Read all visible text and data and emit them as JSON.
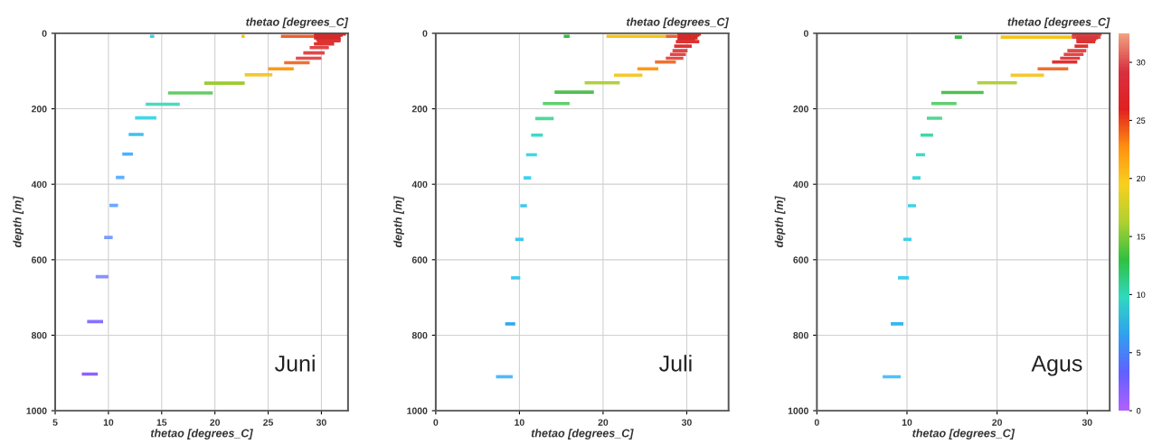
{
  "chart_data": [
    {
      "type": "line",
      "title": "thetao [degrees_C]",
      "xlabel": "thetao [degrees_C]",
      "ylabel": "depth [m]",
      "annotations": [
        "Juni"
      ],
      "xlim": [
        5,
        32.5
      ],
      "xticks": [
        5,
        10,
        15,
        20,
        25,
        30
      ],
      "ylim": [
        1000,
        0
      ],
      "yticks": [
        0,
        200,
        400,
        600,
        800,
        1000
      ],
      "grid": true,
      "series": [
        {
          "x": [
            29.3,
            32.3
          ],
          "values": [
            2,
            2
          ],
          "color": "#d42a2a"
        },
        {
          "x": [
            29.3,
            32.0
          ],
          "values": [
            5,
            5
          ],
          "color": "#d42a2a"
        },
        {
          "x": [
            13.9,
            14.3
          ],
          "values": [
            8,
            8
          ],
          "color": "#40d0e0"
        },
        {
          "x": [
            22.5,
            22.8
          ],
          "values": [
            8,
            8
          ],
          "color": "#f5c518"
        },
        {
          "x": [
            26.2,
            29.3
          ],
          "values": [
            8,
            8
          ],
          "color": "#f06030"
        },
        {
          "x": [
            29.3,
            31.8
          ],
          "values": [
            12,
            12
          ],
          "color": "#d42a2a"
        },
        {
          "x": [
            29.5,
            31.8
          ],
          "values": [
            16,
            16
          ],
          "color": "#d42a2a"
        },
        {
          "x": [
            29.6,
            31.8
          ],
          "values": [
            20,
            20
          ],
          "color": "#dd3333"
        },
        {
          "x": [
            29.3,
            31.2
          ],
          "values": [
            28,
            28
          ],
          "color": "#dd3333"
        },
        {
          "x": [
            28.9,
            30.7
          ],
          "values": [
            38,
            38
          ],
          "color": "#e04848"
        },
        {
          "x": [
            28.3,
            30.3
          ],
          "values": [
            52,
            52
          ],
          "color": "#e04848"
        },
        {
          "x": [
            27.6,
            30.0
          ],
          "values": [
            66,
            66
          ],
          "color": "#e05050"
        },
        {
          "x": [
            26.5,
            28.9
          ],
          "values": [
            78,
            78
          ],
          "color": "#f07030"
        },
        {
          "x": [
            25.0,
            27.4
          ],
          "values": [
            94,
            94
          ],
          "color": "#ff9a10"
        },
        {
          "x": [
            22.8,
            25.4
          ],
          "values": [
            110,
            110
          ],
          "color": "#f5c830"
        },
        {
          "x": [
            19.0,
            22.8
          ],
          "values": [
            132,
            132
          ],
          "color": "#9ccc30"
        },
        {
          "x": [
            15.6,
            19.8
          ],
          "values": [
            158,
            158
          ],
          "color": "#66cc66"
        },
        {
          "x": [
            13.5,
            16.7
          ],
          "values": [
            188,
            188
          ],
          "color": "#4dd9c0"
        },
        {
          "x": [
            12.5,
            14.5
          ],
          "values": [
            224,
            224
          ],
          "color": "#40d8e8"
        },
        {
          "x": [
            11.9,
            13.3
          ],
          "values": [
            268,
            268
          ],
          "color": "#40c0f0"
        },
        {
          "x": [
            11.3,
            12.3
          ],
          "values": [
            320,
            320
          ],
          "color": "#4db0ff"
        },
        {
          "x": [
            10.7,
            11.5
          ],
          "values": [
            382,
            382
          ],
          "color": "#60b0ff"
        },
        {
          "x": [
            10.1,
            10.9
          ],
          "values": [
            456,
            456
          ],
          "color": "#6aa8ff"
        },
        {
          "x": [
            9.6,
            10.4
          ],
          "values": [
            541,
            541
          ],
          "color": "#7a9cff"
        },
        {
          "x": [
            8.8,
            10.0
          ],
          "values": [
            645,
            645
          ],
          "color": "#8890ff"
        },
        {
          "x": [
            8.0,
            9.5
          ],
          "values": [
            764,
            764
          ],
          "color": "#8a70ff"
        },
        {
          "x": [
            7.5,
            9.0
          ],
          "values": [
            903,
            903
          ],
          "color": "#9060ff"
        }
      ]
    },
    {
      "type": "line",
      "title": "thetao [degrees_C]",
      "xlabel": "thetao [degrees_C]",
      "ylabel": "depth [m]",
      "annotations": [
        "Juli"
      ],
      "xlim": [
        0,
        35
      ],
      "xticks": [
        0,
        10,
        20,
        30
      ],
      "ylim": [
        1000,
        0
      ],
      "yticks": [
        0,
        200,
        400,
        600,
        800,
        1000
      ],
      "grid": true,
      "series": [
        {
          "x": [
            28.9,
            31.7
          ],
          "values": [
            2,
            2
          ],
          "color": "#d42a2a"
        },
        {
          "x": [
            28.9,
            31.5
          ],
          "values": [
            5,
            5
          ],
          "color": "#d42a2a"
        },
        {
          "x": [
            15.3,
            16.0
          ],
          "values": [
            8,
            8
          ],
          "color": "#30c040"
        },
        {
          "x": [
            20.4,
            27.5
          ],
          "values": [
            8,
            8
          ],
          "color": "#f5c518"
        },
        {
          "x": [
            27.5,
            28.9
          ],
          "values": [
            8,
            8
          ],
          "color": "#f06030"
        },
        {
          "x": [
            28.9,
            31.3
          ],
          "values": [
            12,
            12
          ],
          "color": "#d42a2a"
        },
        {
          "x": [
            28.9,
            31.0
          ],
          "values": [
            16,
            16
          ],
          "color": "#d42a2a"
        },
        {
          "x": [
            28.7,
            31.5
          ],
          "values": [
            22,
            22
          ],
          "color": "#dd3333"
        },
        {
          "x": [
            28.5,
            30.6
          ],
          "values": [
            34,
            34
          ],
          "color": "#dd3333"
        },
        {
          "x": [
            28.3,
            30.1
          ],
          "values": [
            46,
            46
          ],
          "color": "#e04848"
        },
        {
          "x": [
            28.0,
            29.9
          ],
          "values": [
            56,
            56
          ],
          "color": "#e04848"
        },
        {
          "x": [
            27.5,
            29.6
          ],
          "values": [
            66,
            66
          ],
          "color": "#e05050"
        },
        {
          "x": [
            26.2,
            28.7
          ],
          "values": [
            76,
            76
          ],
          "color": "#f07030"
        },
        {
          "x": [
            24.1,
            26.6
          ],
          "values": [
            94,
            94
          ],
          "color": "#ff9a10"
        },
        {
          "x": [
            21.3,
            24.7
          ],
          "values": [
            111,
            111
          ],
          "color": "#f5c830"
        },
        {
          "x": [
            17.8,
            22.0
          ],
          "values": [
            131,
            131
          ],
          "color": "#b0d040"
        },
        {
          "x": [
            14.2,
            18.9
          ],
          "values": [
            156,
            156
          ],
          "color": "#50c050"
        },
        {
          "x": [
            12.8,
            16.0
          ],
          "values": [
            186,
            186
          ],
          "color": "#60d070"
        },
        {
          "x": [
            11.9,
            14.1
          ],
          "values": [
            226,
            226
          ],
          "color": "#50d8a0"
        },
        {
          "x": [
            11.4,
            12.8
          ],
          "values": [
            270,
            270
          ],
          "color": "#40d8c8"
        },
        {
          "x": [
            10.8,
            12.1
          ],
          "values": [
            322,
            322
          ],
          "color": "#40d8e0"
        },
        {
          "x": [
            10.5,
            11.4
          ],
          "values": [
            383,
            383
          ],
          "color": "#40d0f0"
        },
        {
          "x": [
            10.1,
            10.9
          ],
          "values": [
            457,
            457
          ],
          "color": "#40c8f0"
        },
        {
          "x": [
            9.5,
            10.5
          ],
          "values": [
            546,
            546
          ],
          "color": "#40c8f0"
        },
        {
          "x": [
            9.0,
            10.1
          ],
          "values": [
            648,
            648
          ],
          "color": "#40c8f0"
        },
        {
          "x": [
            8.3,
            9.5
          ],
          "values": [
            770,
            770
          ],
          "color": "#30a8f0"
        },
        {
          "x": [
            7.2,
            9.2
          ],
          "values": [
            910,
            910
          ],
          "color": "#50b8ff"
        }
      ]
    },
    {
      "type": "line",
      "title": "thetao [degrees_C]",
      "xlabel": "thetao [degrees_C]",
      "ylabel": "depth [m]",
      "annotations": [
        "Agus"
      ],
      "xlim": [
        0,
        32.5
      ],
      "xticks": [
        0,
        10,
        20,
        30
      ],
      "ylim": [
        1000,
        0
      ],
      "yticks": [
        0,
        200,
        400,
        600,
        800,
        1000
      ],
      "grid": true,
      "clim": [
        0,
        32.5
      ],
      "cticks": [
        0,
        5,
        10,
        15,
        20,
        25,
        30
      ],
      "series": [
        {
          "x": [
            28.5,
            31.6
          ],
          "values": [
            2,
            2
          ],
          "color": "#d43838"
        },
        {
          "x": [
            28.3,
            31.4
          ],
          "values": [
            5,
            5
          ],
          "color": "#d43838"
        },
        {
          "x": [
            15.3,
            16.1
          ],
          "values": [
            10,
            10
          ],
          "color": "#30c040"
        },
        {
          "x": [
            20.4,
            28.3
          ],
          "values": [
            10,
            10
          ],
          "color": "#f5c518"
        },
        {
          "x": [
            28.3,
            31.5
          ],
          "values": [
            10,
            10
          ],
          "color": "#e04848"
        },
        {
          "x": [
            28.8,
            31.2
          ],
          "values": [
            12,
            12
          ],
          "color": "#d43838"
        },
        {
          "x": [
            28.8,
            31.0
          ],
          "values": [
            16,
            16
          ],
          "color": "#d43838"
        },
        {
          "x": [
            28.8,
            30.9
          ],
          "values": [
            22,
            22
          ],
          "color": "#dd3333"
        },
        {
          "x": [
            28.6,
            30.1
          ],
          "values": [
            34,
            34
          ],
          "color": "#dd3333"
        },
        {
          "x": [
            27.8,
            29.9
          ],
          "values": [
            46,
            46
          ],
          "color": "#e04848"
        },
        {
          "x": [
            27.4,
            29.6
          ],
          "values": [
            56,
            56
          ],
          "color": "#e04848"
        },
        {
          "x": [
            27.0,
            29.2
          ],
          "values": [
            66,
            66
          ],
          "color": "#e04040"
        },
        {
          "x": [
            26.1,
            28.9
          ],
          "values": [
            76,
            76
          ],
          "color": "#e03030"
        },
        {
          "x": [
            24.5,
            27.9
          ],
          "values": [
            94,
            94
          ],
          "color": "#f07030"
        },
        {
          "x": [
            21.5,
            25.2
          ],
          "values": [
            111,
            111
          ],
          "color": "#f5c830"
        },
        {
          "x": [
            17.8,
            22.2
          ],
          "values": [
            131,
            131
          ],
          "color": "#b0d040"
        },
        {
          "x": [
            13.8,
            18.5
          ],
          "values": [
            157,
            157
          ],
          "color": "#50c050"
        },
        {
          "x": [
            12.7,
            15.5
          ],
          "values": [
            186,
            186
          ],
          "color": "#60d070"
        },
        {
          "x": [
            12.2,
            13.9
          ],
          "values": [
            225,
            225
          ],
          "color": "#50d890"
        },
        {
          "x": [
            11.5,
            12.9
          ],
          "values": [
            270,
            270
          ],
          "color": "#40d8a8"
        },
        {
          "x": [
            11.0,
            12.0
          ],
          "values": [
            322,
            322
          ],
          "color": "#40d8c8"
        },
        {
          "x": [
            10.6,
            11.5
          ],
          "values": [
            383,
            383
          ],
          "color": "#40d8d8"
        },
        {
          "x": [
            10.1,
            11.0
          ],
          "values": [
            457,
            457
          ],
          "color": "#40d0e8"
        },
        {
          "x": [
            9.6,
            10.5
          ],
          "values": [
            546,
            546
          ],
          "color": "#40d0e8"
        },
        {
          "x": [
            9.0,
            10.2
          ],
          "values": [
            648,
            648
          ],
          "color": "#40d0f0"
        },
        {
          "x": [
            8.2,
            9.6
          ],
          "values": [
            770,
            770
          ],
          "color": "#30b8f0"
        },
        {
          "x": [
            7.3,
            9.3
          ],
          "values": [
            910,
            910
          ],
          "color": "#50c0ff"
        }
      ]
    }
  ]
}
